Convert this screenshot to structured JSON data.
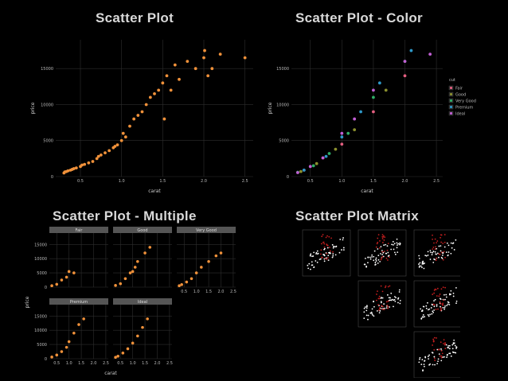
{
  "titles": {
    "p1": "Scatter Plot",
    "p2": "Scatter Plot - Color",
    "p3": "Scatter Plot - Multiple",
    "p4": "Scatter Plot Matrix"
  },
  "colors": {
    "orange": "#f0913a",
    "fair": "#e35f80",
    "good": "#8a8f2e",
    "very_good": "#2fae66",
    "premium": "#2e98c8",
    "ideal": "#c15fd4",
    "matrix_red": "#c41e1e",
    "matrix_white": "#ffffff"
  },
  "chart_data": [
    {
      "type": "scatter",
      "xlabel": "carat",
      "ylabel": "price",
      "xlim": [
        0.2,
        2.6
      ],
      "ylim": [
        0,
        19000
      ],
      "xticks": [
        "0.5",
        "1.0",
        "1.5",
        "2.0",
        "2.5"
      ],
      "yticks": [
        "0",
        "5000",
        "10000",
        "15000"
      ],
      "xtick_values": [
        0.5,
        1.0,
        1.5,
        2.0,
        2.5
      ],
      "ytick_values": [
        0,
        5000,
        10000,
        15000
      ],
      "grid": true,
      "series": [
        {
          "x": [
            0.3,
            0.31,
            0.33,
            0.35,
            0.38,
            0.4,
            0.42,
            0.45,
            0.5,
            0.52,
            0.55,
            0.6,
            0.65,
            0.7,
            0.72,
            0.75,
            0.8,
            0.85,
            0.9,
            0.92,
            0.95,
            1.0,
            1.02,
            1.05,
            1.1,
            1.15,
            1.2,
            1.25,
            1.3,
            1.35,
            1.4,
            1.45,
            1.5,
            1.52,
            1.55,
            1.6,
            1.65,
            1.7,
            1.8,
            1.9,
            2.0,
            2.01,
            2.05,
            2.1,
            2.2,
            2.5
          ],
          "y": [
            500,
            650,
            700,
            800,
            900,
            1000,
            1100,
            1200,
            1400,
            1600,
            1700,
            1900,
            2100,
            2500,
            2800,
            3000,
            3300,
            3600,
            4000,
            4200,
            4400,
            5000,
            6000,
            5500,
            7000,
            8000,
            8500,
            9000,
            10000,
            11000,
            11500,
            12000,
            13000,
            8000,
            14000,
            12000,
            15500,
            13500,
            16000,
            15000,
            16500,
            17500,
            14000,
            15000,
            17000,
            16500
          ]
        }
      ]
    },
    {
      "type": "scatter",
      "xlabel": "carat",
      "ylabel": "price",
      "xlim": [
        0.2,
        2.6
      ],
      "ylim": [
        0,
        19000
      ],
      "xticks": [
        "0.5",
        "1.0",
        "1.5",
        "2.0",
        "2.5"
      ],
      "yticks": [
        "0",
        "5000",
        "10000",
        "15000"
      ],
      "xtick_values": [
        0.5,
        1.0,
        1.5,
        2.0,
        2.5
      ],
      "ytick_values": [
        0,
        5000,
        10000,
        15000
      ],
      "grid": true,
      "legend": {
        "title": "cut",
        "placement": "right",
        "entries": [
          "Fair",
          "Good",
          "Very Good",
          "Premium",
          "Ideal"
        ]
      },
      "series": [
        {
          "name": "Fair",
          "x": [
            0.4,
            0.7,
            1.0,
            1.5,
            2.0
          ],
          "y": [
            900,
            2600,
            4500,
            9000,
            14000
          ]
        },
        {
          "name": "Good",
          "x": [
            0.35,
            0.6,
            0.9,
            1.2,
            1.7
          ],
          "y": [
            700,
            1800,
            3800,
            6500,
            12000
          ]
        },
        {
          "name": "Very Good",
          "x": [
            0.3,
            0.55,
            0.8,
            1.1,
            1.5,
            2.0
          ],
          "y": [
            600,
            1500,
            3200,
            6000,
            11000,
            16000
          ]
        },
        {
          "name": "Premium",
          "x": [
            0.4,
            0.75,
            1.0,
            1.3,
            1.6,
            2.1
          ],
          "y": [
            900,
            2800,
            5500,
            9000,
            13000,
            17500
          ]
        },
        {
          "name": "Ideal",
          "x": [
            0.3,
            0.5,
            0.7,
            1.0,
            1.2,
            1.5,
            2.0,
            2.4
          ],
          "y": [
            550,
            1400,
            2600,
            6000,
            8000,
            12000,
            16000,
            17000
          ]
        }
      ]
    },
    {
      "type": "scatter",
      "facets": [
        "Fair",
        "Good",
        "Very Good",
        "Premium",
        "Ideal"
      ],
      "xlabel": "carat",
      "ylabel": "price",
      "xlim": [
        0.2,
        2.6
      ],
      "ylim": [
        0,
        19000
      ],
      "xticks": [
        "0.5",
        "1.0",
        "1.5",
        "2.0",
        "2.5"
      ],
      "yticks": [
        "0",
        "5000",
        "10000",
        "15000"
      ],
      "xtick_values": [
        0.5,
        1.0,
        1.5,
        2.0,
        2.5
      ],
      "ytick_values": [
        0,
        5000,
        10000,
        15000
      ],
      "grid": true,
      "series": [
        {
          "name": "Fair",
          "x": [
            0.3,
            0.5,
            0.7,
            0.9,
            1.0,
            1.2
          ],
          "y": [
            500,
            1000,
            2500,
            3500,
            5500,
            5000
          ]
        },
        {
          "name": "Good",
          "x": [
            0.3,
            0.5,
            0.7,
            0.9,
            1.0,
            1.1,
            1.2,
            1.5,
            1.7
          ],
          "y": [
            600,
            1200,
            3000,
            5000,
            5500,
            7000,
            9000,
            12000,
            14000
          ]
        },
        {
          "name": "Very Good",
          "x": [
            0.3,
            0.4,
            0.6,
            0.8,
            1.0,
            1.2,
            1.5,
            1.8,
            2.0
          ],
          "y": [
            500,
            900,
            1800,
            3000,
            5000,
            7000,
            9000,
            11000,
            12000
          ]
        },
        {
          "name": "Premium",
          "x": [
            0.3,
            0.5,
            0.7,
            0.9,
            1.0,
            1.2,
            1.4,
            1.6
          ],
          "y": [
            600,
            1300,
            2500,
            4000,
            6000,
            9000,
            12000,
            14000
          ]
        },
        {
          "name": "Ideal",
          "x": [
            0.3,
            0.4,
            0.6,
            0.8,
            1.0,
            1.2,
            1.4,
            1.6
          ],
          "y": [
            500,
            900,
            2000,
            3500,
            5500,
            8000,
            11000,
            14000
          ]
        }
      ]
    },
    {
      "type": "scatter",
      "matrix": true,
      "grid": false
    }
  ]
}
